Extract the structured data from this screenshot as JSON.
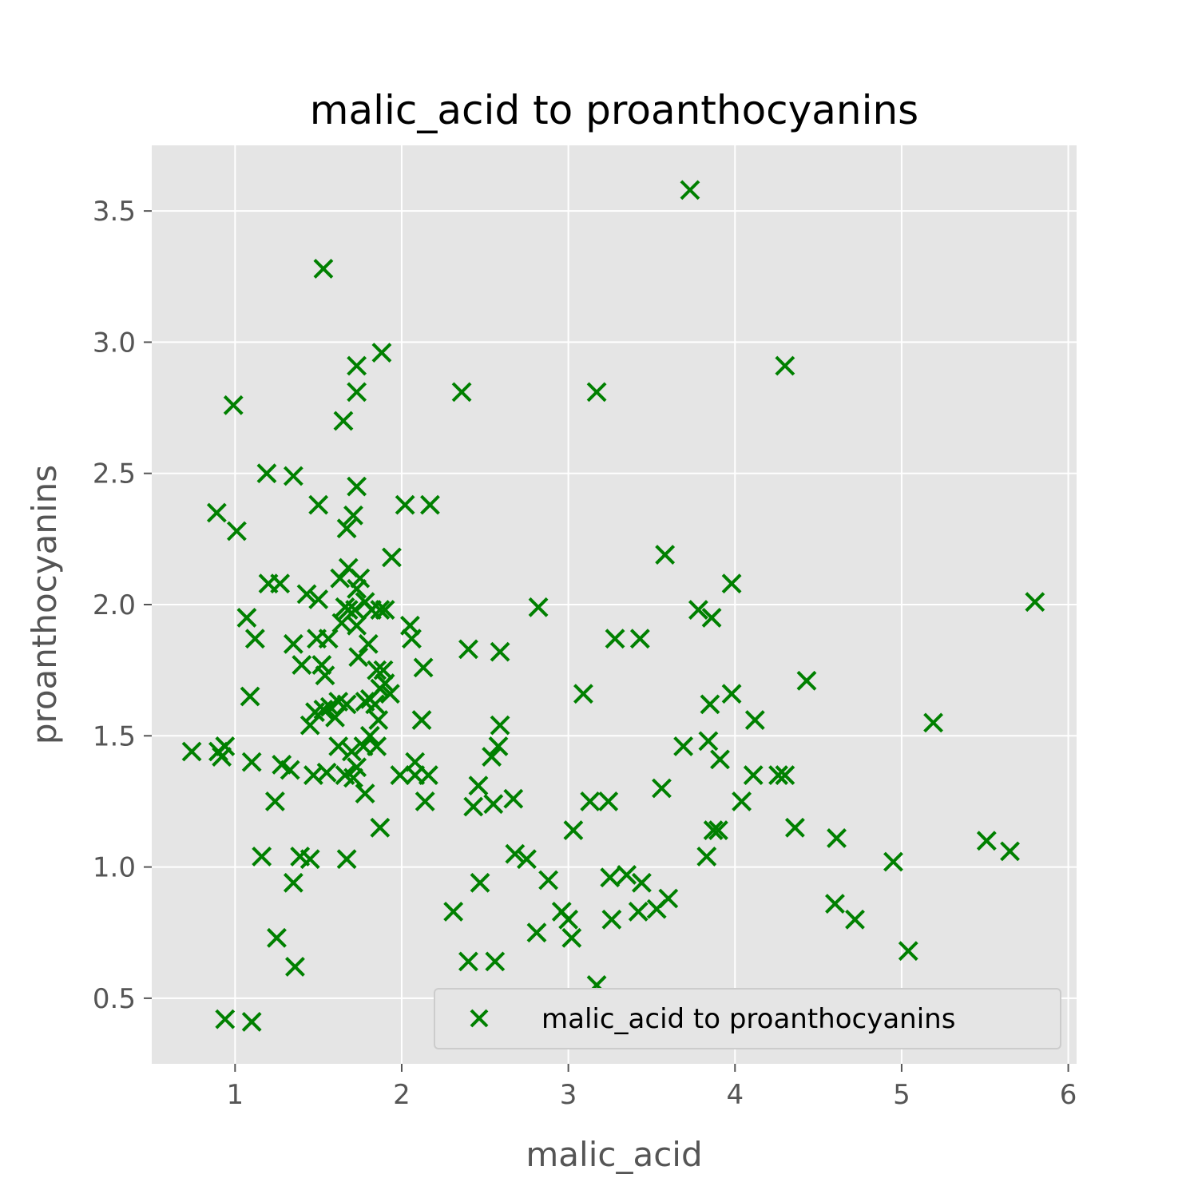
{
  "chart_data": {
    "type": "scatter",
    "title": "malic_acid to proanthocyanins",
    "xlabel": "malic_acid",
    "ylabel": "proanthocyanins",
    "xlim": [
      0.5,
      6.05
    ],
    "ylim": [
      0.25,
      3.75
    ],
    "xticks": [
      1,
      2,
      3,
      4,
      5,
      6
    ],
    "xtick_labels": [
      "1",
      "2",
      "3",
      "4",
      "5",
      "6"
    ],
    "yticks": [
      0.5,
      1.0,
      1.5,
      2.0,
      2.5,
      3.0,
      3.5
    ],
    "ytick_labels": [
      "0.5",
      "1.0",
      "1.5",
      "2.0",
      "2.5",
      "3.0",
      "3.5"
    ],
    "grid": true,
    "legend_position": "lower-right",
    "series": [
      {
        "name": "malic_acid to proanthocyanins",
        "color": "#008000",
        "marker": "x",
        "points": [
          [
            3.73,
            3.58
          ],
          [
            1.53,
            3.28
          ],
          [
            1.88,
            2.96
          ],
          [
            1.73,
            2.91
          ],
          [
            4.3,
            2.91
          ],
          [
            1.73,
            2.81
          ],
          [
            2.36,
            2.81
          ],
          [
            3.17,
            2.81
          ],
          [
            0.99,
            2.76
          ],
          [
            1.65,
            2.7
          ],
          [
            1.19,
            2.5
          ],
          [
            1.35,
            2.49
          ],
          [
            1.73,
            2.45
          ],
          [
            0.89,
            2.35
          ],
          [
            1.5,
            2.38
          ],
          [
            1.71,
            2.34
          ],
          [
            1.67,
            2.29
          ],
          [
            2.02,
            2.38
          ],
          [
            2.17,
            2.38
          ],
          [
            1.01,
            2.28
          ],
          [
            3.58,
            2.19
          ],
          [
            1.94,
            2.18
          ],
          [
            1.68,
            2.14
          ],
          [
            1.63,
            2.1
          ],
          [
            1.75,
            2.1
          ],
          [
            1.2,
            2.08
          ],
          [
            1.27,
            2.08
          ],
          [
            3.98,
            2.08
          ],
          [
            1.73,
            2.06
          ],
          [
            1.43,
            2.04
          ],
          [
            1.5,
            2.02
          ],
          [
            1.66,
            1.99
          ],
          [
            1.68,
            1.98
          ],
          [
            1.72,
            1.98
          ],
          [
            1.78,
            2.01
          ],
          [
            1.82,
            1.98
          ],
          [
            1.87,
            1.98
          ],
          [
            1.9,
            1.98
          ],
          [
            2.82,
            1.99
          ],
          [
            5.8,
            2.01
          ],
          [
            3.78,
            1.98
          ],
          [
            3.86,
            1.95
          ],
          [
            1.07,
            1.95
          ],
          [
            1.64,
            1.93
          ],
          [
            1.73,
            1.92
          ],
          [
            2.05,
            1.92
          ],
          [
            1.12,
            1.87
          ],
          [
            1.49,
            1.87
          ],
          [
            1.56,
            1.87
          ],
          [
            1.8,
            1.85
          ],
          [
            2.06,
            1.87
          ],
          [
            3.28,
            1.87
          ],
          [
            3.43,
            1.87
          ],
          [
            1.35,
            1.85
          ],
          [
            2.4,
            1.83
          ],
          [
            2.59,
            1.82
          ],
          [
            1.74,
            1.8
          ],
          [
            1.4,
            1.77
          ],
          [
            1.52,
            1.77
          ],
          [
            1.85,
            1.75
          ],
          [
            1.89,
            1.75
          ],
          [
            2.13,
            1.76
          ],
          [
            1.54,
            1.73
          ],
          [
            1.9,
            1.7
          ],
          [
            4.43,
            1.71
          ],
          [
            1.87,
            1.68
          ],
          [
            1.93,
            1.66
          ],
          [
            3.09,
            1.66
          ],
          [
            3.98,
            1.66
          ],
          [
            1.09,
            1.65
          ],
          [
            1.62,
            1.63
          ],
          [
            1.67,
            1.62
          ],
          [
            1.78,
            1.63
          ],
          [
            1.81,
            1.64
          ],
          [
            1.84,
            1.62
          ],
          [
            3.85,
            1.62
          ],
          [
            1.48,
            1.59
          ],
          [
            1.53,
            1.6
          ],
          [
            1.57,
            1.61
          ],
          [
            1.6,
            1.57
          ],
          [
            1.86,
            1.56
          ],
          [
            2.12,
            1.56
          ],
          [
            4.12,
            1.56
          ],
          [
            5.19,
            1.55
          ],
          [
            1.45,
            1.54
          ],
          [
            2.59,
            1.54
          ],
          [
            1.81,
            1.5
          ],
          [
            3.84,
            1.48
          ],
          [
            0.74,
            1.44
          ],
          [
            0.9,
            1.44
          ],
          [
            0.94,
            1.46
          ],
          [
            1.62,
            1.46
          ],
          [
            1.7,
            1.44
          ],
          [
            1.77,
            1.46
          ],
          [
            1.85,
            1.46
          ],
          [
            2.58,
            1.46
          ],
          [
            3.69,
            1.46
          ],
          [
            0.92,
            1.42
          ],
          [
            2.54,
            1.42
          ],
          [
            3.91,
            1.41
          ],
          [
            1.1,
            1.4
          ],
          [
            1.28,
            1.39
          ],
          [
            1.33,
            1.37
          ],
          [
            2.08,
            1.4
          ],
          [
            1.55,
            1.36
          ],
          [
            1.73,
            1.38
          ],
          [
            1.47,
            1.35
          ],
          [
            1.66,
            1.35
          ],
          [
            1.71,
            1.34
          ],
          [
            1.99,
            1.35
          ],
          [
            2.08,
            1.35
          ],
          [
            2.16,
            1.35
          ],
          [
            4.11,
            1.35
          ],
          [
            4.26,
            1.35
          ],
          [
            4.3,
            1.35
          ],
          [
            2.46,
            1.31
          ],
          [
            3.56,
            1.3
          ],
          [
            1.78,
            1.28
          ],
          [
            1.24,
            1.25
          ],
          [
            2.14,
            1.25
          ],
          [
            2.43,
            1.23
          ],
          [
            2.55,
            1.24
          ],
          [
            2.67,
            1.26
          ],
          [
            3.13,
            1.25
          ],
          [
            3.24,
            1.25
          ],
          [
            4.04,
            1.25
          ],
          [
            1.87,
            1.15
          ],
          [
            3.87,
            1.14
          ],
          [
            3.9,
            1.14
          ],
          [
            4.36,
            1.15
          ],
          [
            3.03,
            1.14
          ],
          [
            5.51,
            1.1
          ],
          [
            4.61,
            1.11
          ],
          [
            5.65,
            1.06
          ],
          [
            2.68,
            1.05
          ],
          [
            2.75,
            1.03
          ],
          [
            1.16,
            1.04
          ],
          [
            1.39,
            1.04
          ],
          [
            1.45,
            1.03
          ],
          [
            1.67,
            1.03
          ],
          [
            3.83,
            1.04
          ],
          [
            4.95,
            1.02
          ],
          [
            2.47,
            0.94
          ],
          [
            1.35,
            0.94
          ],
          [
            2.88,
            0.95
          ],
          [
            3.25,
            0.96
          ],
          [
            3.35,
            0.97
          ],
          [
            3.44,
            0.94
          ],
          [
            3.6,
            0.88
          ],
          [
            3.53,
            0.84
          ],
          [
            3.42,
            0.83
          ],
          [
            2.31,
            0.83
          ],
          [
            2.96,
            0.83
          ],
          [
            3.0,
            0.8
          ],
          [
            4.6,
            0.86
          ],
          [
            4.72,
            0.8
          ],
          [
            3.26,
            0.8
          ],
          [
            2.81,
            0.75
          ],
          [
            3.02,
            0.73
          ],
          [
            1.25,
            0.73
          ],
          [
            5.04,
            0.68
          ],
          [
            2.4,
            0.64
          ],
          [
            2.56,
            0.64
          ],
          [
            1.36,
            0.62
          ],
          [
            3.17,
            0.55
          ],
          [
            0.94,
            0.42
          ],
          [
            1.1,
            0.41
          ]
        ]
      }
    ]
  }
}
